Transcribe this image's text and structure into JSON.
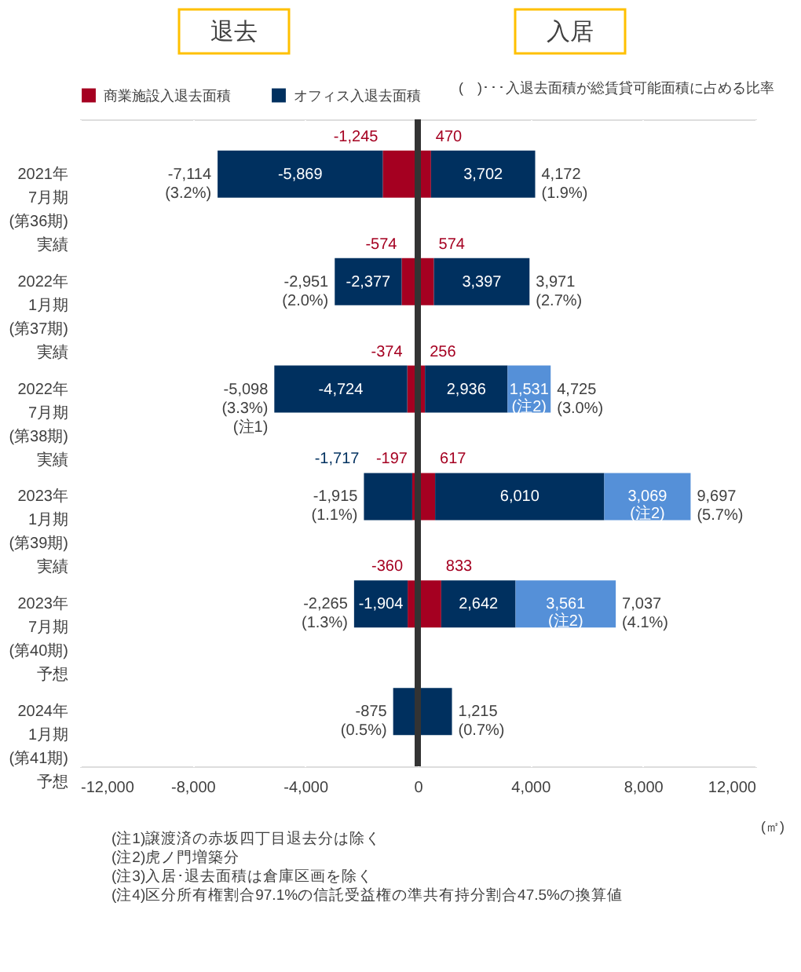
{
  "chart_data": {
    "type": "bar",
    "orientation": "horizontal",
    "stacked": true,
    "xlabel": "(㎡)",
    "categories": [
      "2021年\n7月期\n(第36期)\n実績",
      "2022年\n1月期\n(第37期)\n実績",
      "2022年\n7月期\n(第38期)\n実績",
      "2023年\n1月期\n(第39期)\n実績",
      "2023年\n7月期\n(第40期)\n予想",
      "2024年\n1月期\n(第41期)\n予想"
    ],
    "series": [
      {
        "name": "商業施設入退去面積",
        "color": "#a50021",
        "values": [
          -1245,
          -574,
          -374,
          -197,
          -360,
          null
        ],
        "value_labels": [
          "-1,245",
          "-574",
          "-374",
          "-197",
          "-360",
          null
        ]
      },
      {
        "name": "オフィス入退去面積",
        "color": "#00305f",
        "values": [
          -5869,
          -2377,
          -4724,
          -1717,
          -1904,
          -875
        ],
        "value_labels": [
          "-5,869",
          "-2,377",
          "-4,724",
          "-1,717",
          "-1,904",
          null
        ]
      },
      {
        "color": "#a50021",
        "values": [
          470,
          574,
          256,
          617,
          833,
          null
        ],
        "value_labels": [
          "470",
          "574",
          "256",
          "617",
          "833",
          null
        ]
      },
      {
        "color": "#00305f",
        "values": [
          3702,
          3397,
          2936,
          6010,
          2642,
          1215
        ],
        "value_labels": [
          "3,702",
          "3,397",
          "2,936",
          "6,010",
          "2,642",
          null
        ]
      },
      {
        "color": "#5590d8",
        "values": [
          null,
          null,
          1531,
          3069,
          3561,
          null
        ],
        "value_labels": [
          null,
          null,
          "1,531\n(注2)",
          "3,069\n(注2)",
          "3,561\n(注2)",
          null
        ]
      }
    ],
    "xlim": [
      -12000,
      12000
    ],
    "xticks": [
      {
        "value": -12000,
        "label": "-12,000"
      },
      {
        "value": -8000,
        "label": "-8,000"
      },
      {
        "value": -4000,
        "label": "-4,000"
      },
      0,
      {
        "value": 4000,
        "label": "4,000"
      },
      {
        "value": 8000,
        "label": "8,000"
      },
      {
        "value": 12000,
        "label": "12,000"
      }
    ],
    "grid": "x",
    "legend": "top",
    "ref_lines": [
      {
        "axis": "x",
        "value": 0,
        "color": "#333333"
      }
    ],
    "annotations": [
      "退去",
      "入居",
      "(　)･･･入退去面積が総賃貸可能面積に占める比率",
      "(注1)譲渡済の赤坂四丁目退去分は除く",
      "(注2)虎ノ門増築分",
      "(注3)入居･退去面積は倉庫区画を除く",
      "(注4)区分所有権割合97.1%の信託受益権の準共有持分割合47.5%の換算値",
      "-7,114\n(3.2%)",
      "4,172\n(1.9%)",
      "-2,951\n(2.0%)",
      "3,971\n(2.7%)",
      "-5,098\n(3.3%)\n(注1)",
      "4,725\n(3.0%)",
      "-1,915\n(1.1%)",
      "9,697\n(5.7%)",
      "-2,265\n(1.3%)",
      "7,037\n(4.1%)",
      "-875\n(0.5%)",
      "1,215\n(0.7%)"
    ]
  }
}
